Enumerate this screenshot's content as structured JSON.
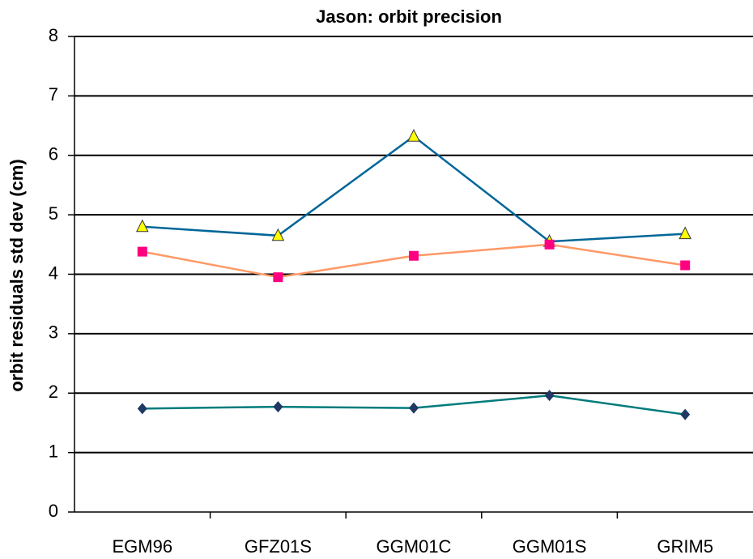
{
  "chart_data": {
    "type": "line",
    "title": "Jason: orbit precision",
    "y_label": "orbit residuals std dev (cm)",
    "categories": [
      "EGM96",
      "GFZ01S",
      "GGM01C",
      "GGM01S",
      "GRIM5"
    ],
    "series": [
      {
        "color": "#006699",
        "marker": "triangle",
        "marker_color": "#ffff00",
        "values": [
          4.8,
          4.65,
          6.32,
          4.55,
          4.68
        ]
      },
      {
        "color": "#ff9966",
        "marker": "square",
        "marker_color": "#ff0080",
        "values": [
          4.38,
          3.95,
          4.31,
          4.5,
          4.15
        ]
      },
      {
        "color": "#007b7b",
        "marker": "diamond",
        "marker_color": "#1f3864",
        "values": [
          1.74,
          1.77,
          1.75,
          1.96,
          1.64
        ]
      }
    ],
    "ylim": [
      0,
      8
    ],
    "yticks": [
      0,
      1,
      2,
      3,
      4,
      5,
      6,
      7,
      8
    ],
    "grid": true
  }
}
